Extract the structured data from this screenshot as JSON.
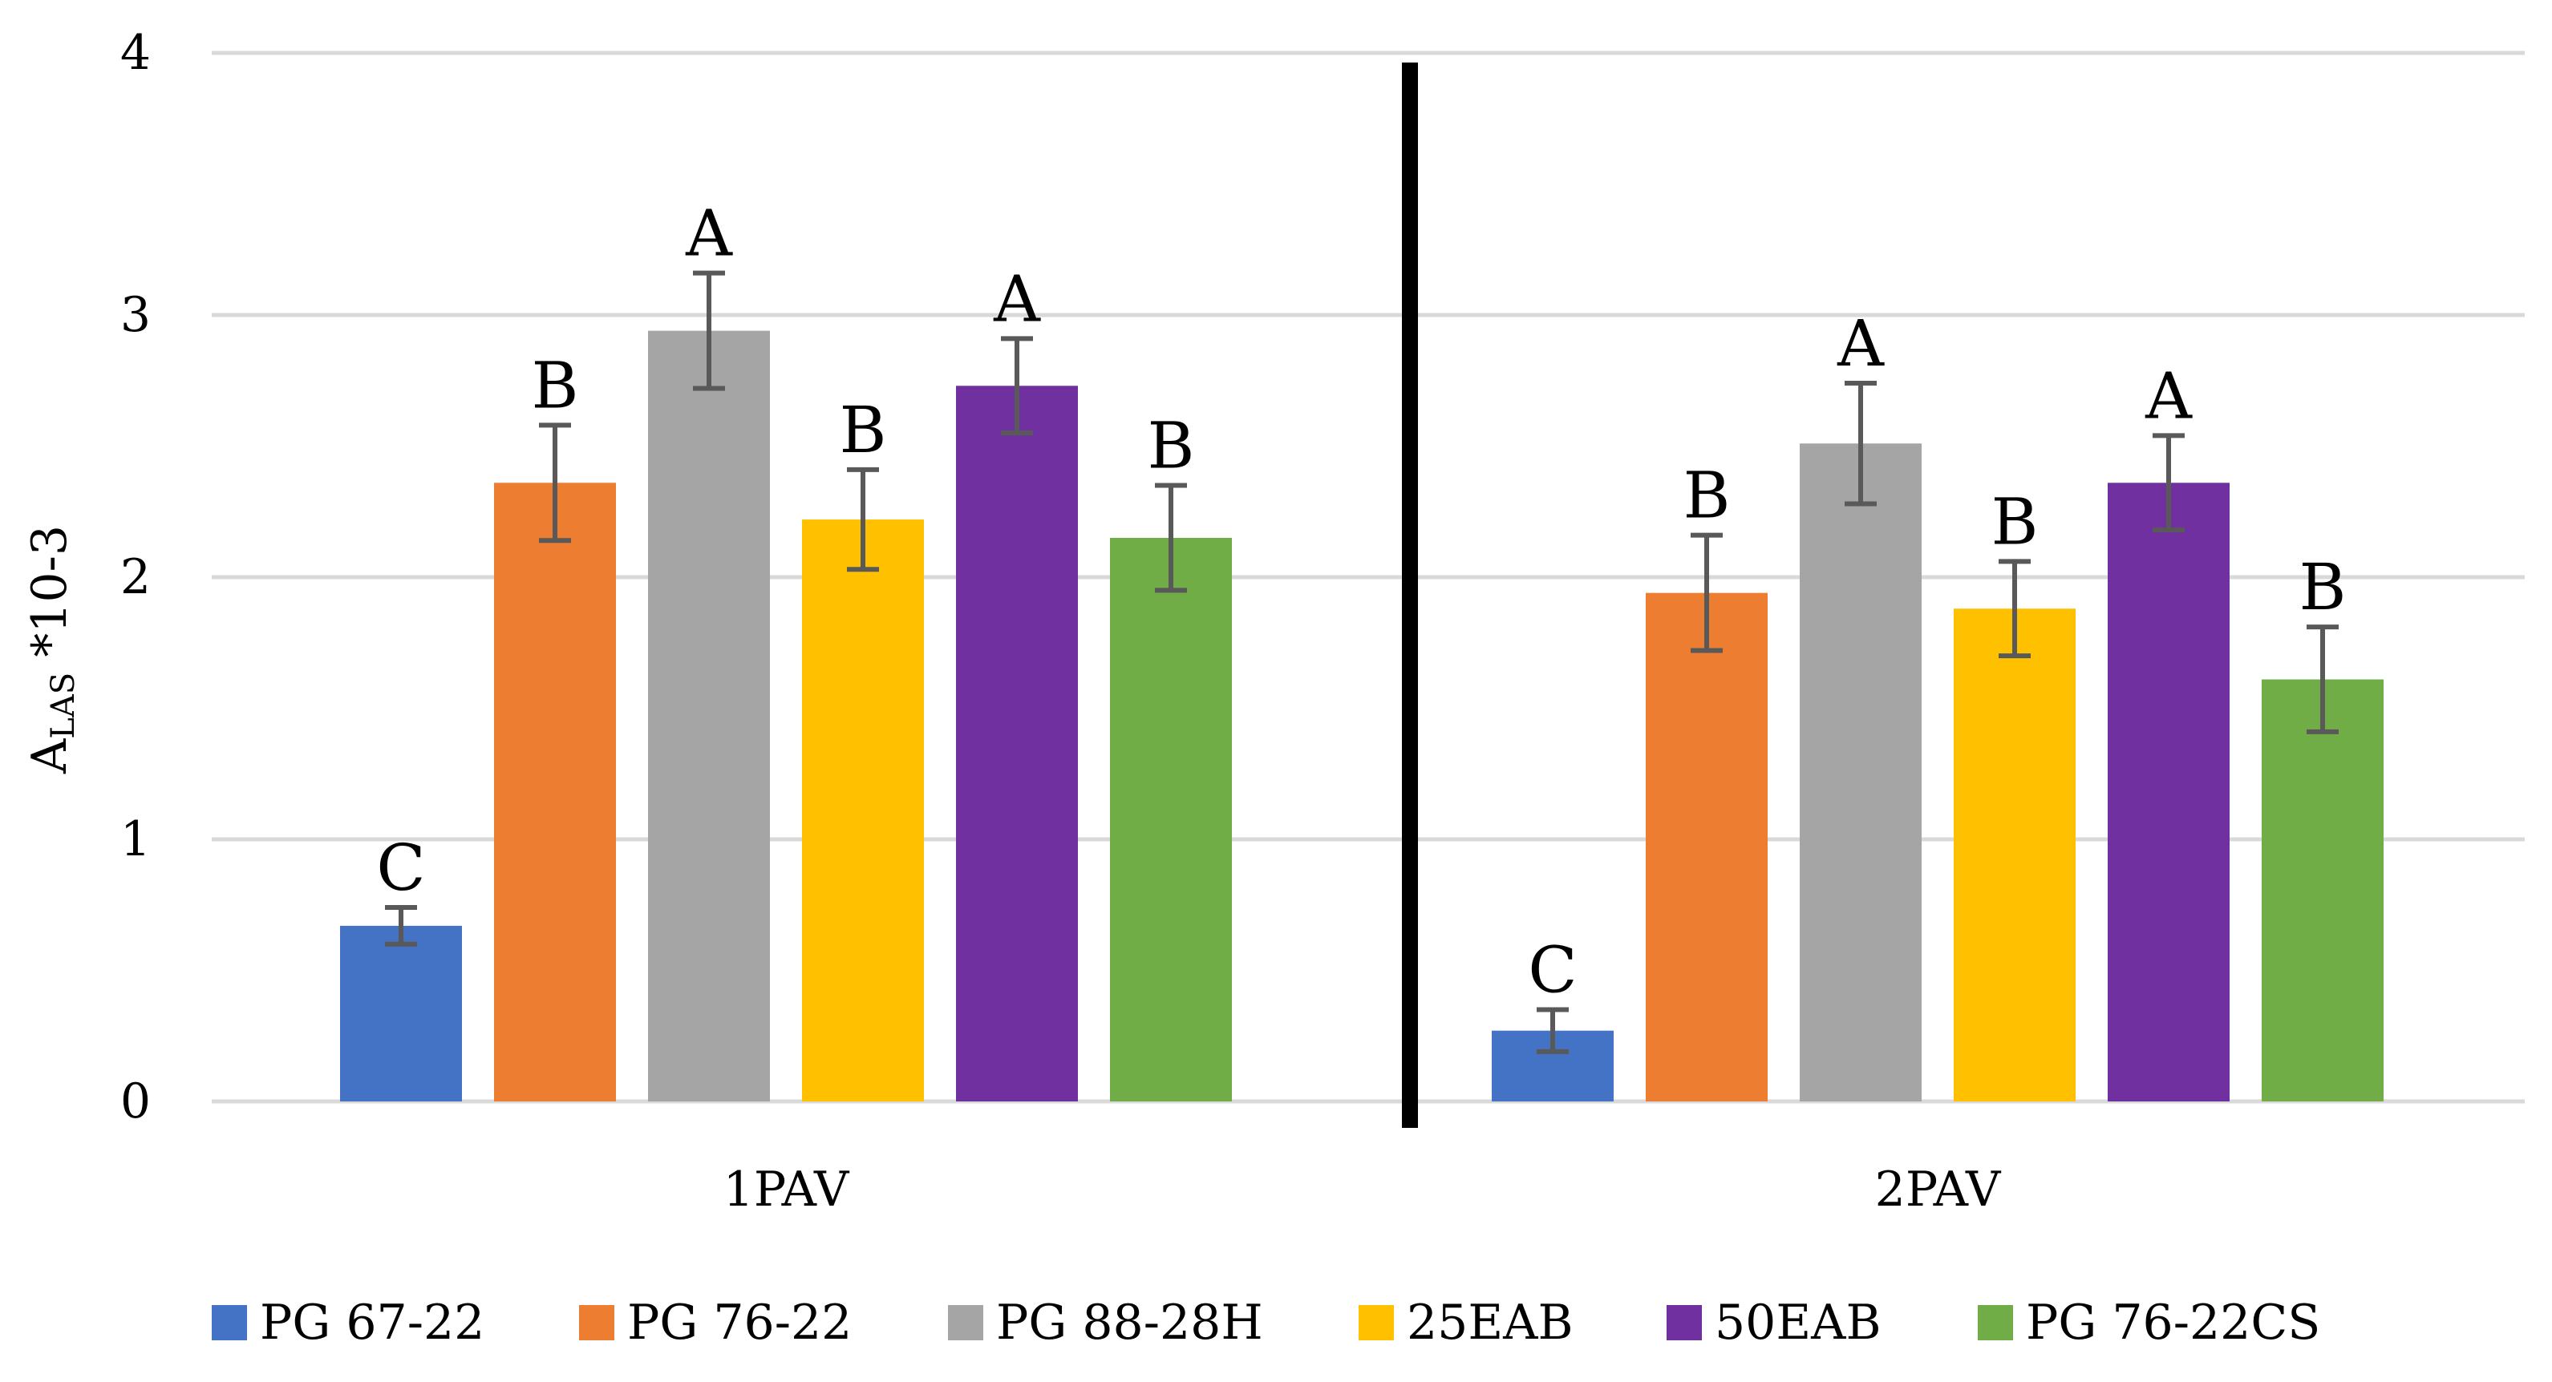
{
  "chart_data": {
    "type": "bar",
    "title": "",
    "xlabel": "",
    "ylabel": {
      "main": "A",
      "sub": "LAS",
      "suffix": " *10-3"
    },
    "ylim": [
      0,
      4
    ],
    "yticks": [
      0,
      1,
      2,
      3,
      4
    ],
    "grid": true,
    "legend_position": "bottom",
    "categories": [
      "1PAV",
      "2PAV"
    ],
    "series": [
      {
        "name": "PG 67-22",
        "color": "#4472C4",
        "values": [
          0.67,
          0.27
        ],
        "errors": [
          0.07,
          0.08
        ],
        "labels": [
          "C",
          "C"
        ]
      },
      {
        "name": "PG 76-22",
        "color": "#ED7D31",
        "values": [
          2.36,
          1.94
        ],
        "errors": [
          0.22,
          0.22
        ],
        "labels": [
          "B",
          "B"
        ]
      },
      {
        "name": "PG 88-28H",
        "color": "#A5A5A5",
        "values": [
          2.94,
          2.51
        ],
        "errors": [
          0.22,
          0.23
        ],
        "labels": [
          "A",
          "A"
        ]
      },
      {
        "name": "25EAB",
        "color": "#FFC000",
        "values": [
          2.22,
          1.88
        ],
        "errors": [
          0.19,
          0.18
        ],
        "labels": [
          "B",
          "B"
        ]
      },
      {
        "name": "50EAB",
        "color": "#7030A0",
        "values": [
          2.73,
          2.36
        ],
        "errors": [
          0.18,
          0.18
        ],
        "labels": [
          "A",
          "A"
        ]
      },
      {
        "name": "PG 76-22CS",
        "color": "#70AD47",
        "values": [
          2.15,
          1.61
        ],
        "errors": [
          0.2,
          0.2
        ],
        "labels": [
          "B",
          "B"
        ]
      }
    ]
  }
}
